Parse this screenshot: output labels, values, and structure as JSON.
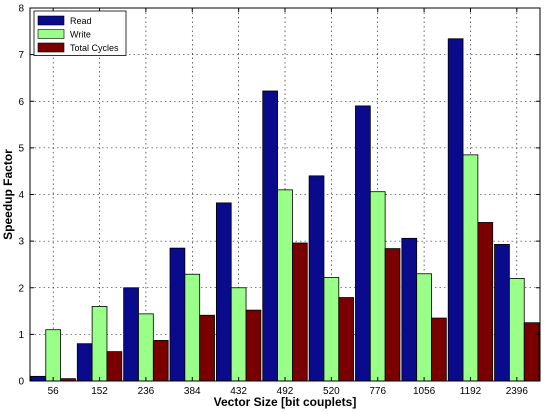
{
  "chart_data": {
    "type": "bar",
    "title": "",
    "xlabel": "Vector Size [bit couplets]",
    "ylabel": "Speedup Factor",
    "categories": [
      "56",
      "152",
      "236",
      "384",
      "432",
      "492",
      "520",
      "776",
      "1056",
      "1192",
      "2396"
    ],
    "series": [
      {
        "name": "Read",
        "color": "#0a0a8c",
        "values": [
          0.1,
          0.8,
          2.0,
          2.85,
          3.82,
          6.22,
          4.4,
          5.9,
          3.06,
          7.34,
          2.93
        ]
      },
      {
        "name": "Write",
        "color": "#99ff88",
        "values": [
          1.1,
          1.6,
          1.44,
          2.29,
          2.0,
          4.1,
          2.22,
          4.06,
          2.3,
          4.85,
          2.2
        ]
      },
      {
        "name": "Total Cycles",
        "color": "#7a0000",
        "values": [
          0.05,
          0.63,
          0.87,
          1.41,
          1.52,
          2.96,
          1.79,
          2.84,
          1.35,
          3.4,
          1.25
        ]
      }
    ],
    "ylim": [
      0,
      8
    ],
    "yticks": [
      0,
      1,
      2,
      3,
      4,
      5,
      6,
      7,
      8
    ],
    "grid": true,
    "legend_position": "top-left"
  }
}
